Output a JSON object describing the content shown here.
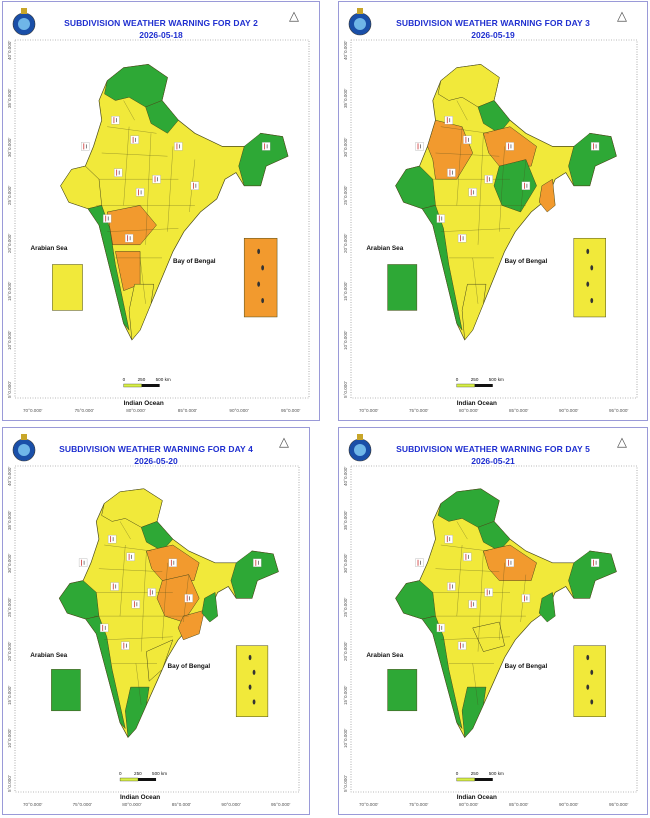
{
  "colors": {
    "green": "#2ea836",
    "yellow": "#f1e93a",
    "orange": "#f29a2e",
    "border": "#4a4a1a",
    "title": "#1f2fd0"
  },
  "panels": [
    {
      "title": "SUBDIVISION WEATHER WARNING FOR DAY 2",
      "date": "2026-05-18",
      "arabian_sea": "Arabian Sea",
      "bay_of_bengal": "Bay of Bengal",
      "indian_ocean": "Indian Ocean",
      "scale": {
        "zero": "0",
        "mid": "250",
        "end": "500 km"
      },
      "lon_ticks": [
        "70°0.000'",
        "75°0.000'",
        "80°0.000'",
        "85°0.000'",
        "90°0.000'",
        "95°0.000'"
      ],
      "lat_ticks": [
        "40°0.000'",
        "35°0.000'",
        "30°0.000'",
        "25°0.000'",
        "20°0.000'",
        "15°0.000'",
        "10°0.000'",
        "5°0.000'"
      ],
      "base_color": "yellow",
      "warnings": {
        "orange": "some",
        "green": "north-and-west"
      },
      "lakshadweep": "yellow",
      "andaman": "orange"
    },
    {
      "title": "SUBDIVISION WEATHER WARNING FOR DAY 3",
      "date": "2026-05-19",
      "arabian_sea": "Arabian Sea",
      "bay_of_bengal": "Bay of Bengal",
      "indian_ocean": "Indian Ocean",
      "scale": {
        "zero": "0",
        "mid": "250",
        "end": "500 km"
      },
      "lon_ticks": [
        "70°0.000'",
        "75°0.000'",
        "80°0.000'",
        "85°0.000'",
        "90°0.000'",
        "95°0.000'"
      ],
      "lat_ticks": [
        "40°0.000'",
        "35°0.000'",
        "30°0.000'",
        "25°0.000'",
        "20°0.000'",
        "15°0.000'",
        "10°0.000'",
        "5°0.000'"
      ],
      "base_color": "yellow",
      "lakshadweep": "green",
      "andaman": "yellow"
    },
    {
      "title": "SUBDIVISION WEATHER WARNING FOR DAY 4",
      "date": "2026-05-20",
      "arabian_sea": "Arabian Sea",
      "bay_of_bengal": "Bay of Bengal",
      "indian_ocean": "Indian Ocean",
      "scale": {
        "zero": "0",
        "mid": "250",
        "end": "500 km"
      },
      "lon_ticks": [
        "70°0.000'",
        "75°0.000'",
        "80°0.000'",
        "85°0.000'",
        "90°0.000'",
        "95°0.000'"
      ],
      "lat_ticks": [
        "40°0.000'",
        "35°0.000'",
        "30°0.000'",
        "25°0.000'",
        "20°0.000'",
        "15°0.000'",
        "10°0.000'",
        "5°0.000'"
      ],
      "base_color": "yellow",
      "lakshadweep": "green",
      "andaman": "yellow"
    },
    {
      "title": "SUBDIVISION WEATHER WARNING FOR DAY 5",
      "date": "2026-05-21",
      "arabian_sea": "Arabian Sea",
      "bay_of_bengal": "Bay of Bengal",
      "indian_ocean": "Indian Ocean",
      "scale": {
        "zero": "0",
        "mid": "250",
        "end": "500 km"
      },
      "lon_ticks": [
        "70°0.000'",
        "75°0.000'",
        "80°0.000'",
        "85°0.000'",
        "90°0.000'",
        "95°0.000'"
      ],
      "lat_ticks": [
        "40°0.000'",
        "35°0.000'",
        "30°0.000'",
        "25°0.000'",
        "20°0.000'",
        "15°0.000'",
        "10°0.000'",
        "5°0.000'"
      ],
      "base_color": "yellow",
      "lakshadweep": "green",
      "andaman": "yellow"
    }
  ]
}
